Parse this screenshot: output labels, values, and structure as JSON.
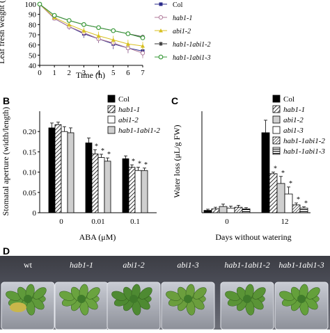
{
  "panel_labels": {
    "B": "B",
    "C": "C",
    "D": "D"
  },
  "colors": {
    "black": "#000000",
    "white": "#ffffff",
    "grey": "#cfcfcf",
    "col": "#2a2a8a",
    "hab1": "#b07a9a",
    "abi12": "#d8c020",
    "dbl2": "#333333",
    "dbl3": "#3a9a3a"
  },
  "chart_data": [
    {
      "type": "line",
      "ylabel": "Leaf fresh weight (",
      "xlabel": "Time (h)",
      "x": [
        0,
        1,
        2,
        3,
        4,
        5,
        6,
        7
      ],
      "xlim": [
        0,
        7
      ],
      "ylim": [
        40,
        100
      ],
      "yticks": [
        40,
        50,
        60,
        70,
        80,
        90,
        100
      ],
      "series": [
        {
          "name": "Col",
          "values": [
            100,
            86,
            78,
            71,
            66,
            61,
            57,
            54
          ],
          "err": [
            0,
            2,
            3,
            4,
            4,
            5,
            5,
            5
          ],
          "color": "#2a2a8a",
          "marker": "square"
        },
        {
          "name": "hab1-1",
          "values": [
            100,
            86,
            78,
            72,
            66,
            62,
            57,
            52
          ],
          "err": [
            0,
            2,
            3,
            4,
            4,
            5,
            5,
            5
          ],
          "color": "#b07a9a",
          "marker": "circle"
        },
        {
          "name": "abi1-2",
          "values": [
            100,
            87,
            80,
            74,
            69,
            65,
            61,
            59
          ],
          "err": [
            0,
            2,
            3,
            3,
            4,
            4,
            4,
            4
          ],
          "color": "#d8c020",
          "marker": "triangle"
        },
        {
          "name": "hab1-1abi1-2",
          "values": [
            100,
            89,
            84,
            80,
            77,
            74,
            71,
            68
          ],
          "err": [
            0,
            1,
            2,
            2,
            2,
            2,
            2,
            2
          ],
          "color": "#333333",
          "marker": "star"
        },
        {
          "name": "hab1-1abi1-3",
          "values": [
            100,
            89,
            84,
            80,
            77,
            74,
            71,
            67
          ],
          "err": [
            0,
            1,
            2,
            2,
            2,
            2,
            2,
            2
          ],
          "color": "#3a9a3a",
          "marker": "circle-open"
        }
      ]
    },
    {
      "type": "bar",
      "ylabel": "Stomatal aperture (width/length)",
      "xlabel": "ABA (μM)",
      "categories": [
        "0",
        "0.01",
        "0.1"
      ],
      "ylim": [
        0,
        0.25
      ],
      "yticks": [
        "0",
        "0.05",
        "0.10",
        "0.15",
        "0.20"
      ],
      "series": [
        {
          "name": "Col",
          "values": [
            0.209,
            0.172,
            0.133
          ],
          "err": [
            0.012,
            0.012,
            0.007
          ],
          "pattern": "black"
        },
        {
          "name": "hab1-1",
          "values": [
            0.217,
            0.145,
            0.112
          ],
          "err": [
            0.006,
            0.01,
            0.006
          ],
          "pattern": "hatch"
        },
        {
          "name": "abi1-2",
          "values": [
            0.2,
            0.136,
            0.104
          ],
          "err": [
            0.012,
            0.008,
            0.008
          ],
          "pattern": "white"
        },
        {
          "name": "hab1-1abi1-2",
          "values": [
            0.197,
            0.127,
            0.104
          ],
          "err": [
            0.012,
            0.008,
            0.006
          ],
          "pattern": "grey"
        }
      ],
      "significance": "*"
    },
    {
      "type": "bar",
      "ylabel": "Water loss (μL/g FW)",
      "xlabel": "Days without watering",
      "categories": [
        "0",
        "12"
      ],
      "ylim": [
        0,
        260
      ],
      "series": [
        {
          "name": "Col",
          "values": [
            6,
            205
          ],
          "err": [
            3,
            32
          ],
          "pattern": "black"
        },
        {
          "name": "hab1-1",
          "values": [
            10,
            100
          ],
          "err": [
            4,
            4
          ],
          "pattern": "hatch"
        },
        {
          "name": "abi1-2",
          "values": [
            16,
            75
          ],
          "err": [
            6,
            18
          ],
          "pattern": "grey"
        },
        {
          "name": "abi1-3",
          "values": [
            12,
            48
          ],
          "err": [
            5,
            18
          ],
          "pattern": "white"
        },
        {
          "name": "hab1-1abi1-2",
          "values": [
            14,
            20
          ],
          "err": [
            5,
            5
          ],
          "pattern": "hatch-dense"
        },
        {
          "name": "hab1-1abi1-3",
          "values": [
            10,
            12
          ],
          "err": [
            3,
            3
          ],
          "pattern": "stripe"
        }
      ],
      "significance": "*"
    }
  ],
  "photo": {
    "labels": [
      "wt",
      "hab1-1",
      "abi1-2",
      "abi1-3",
      "hab1-1abi1-2",
      "hab1-1abi1-3"
    ]
  }
}
